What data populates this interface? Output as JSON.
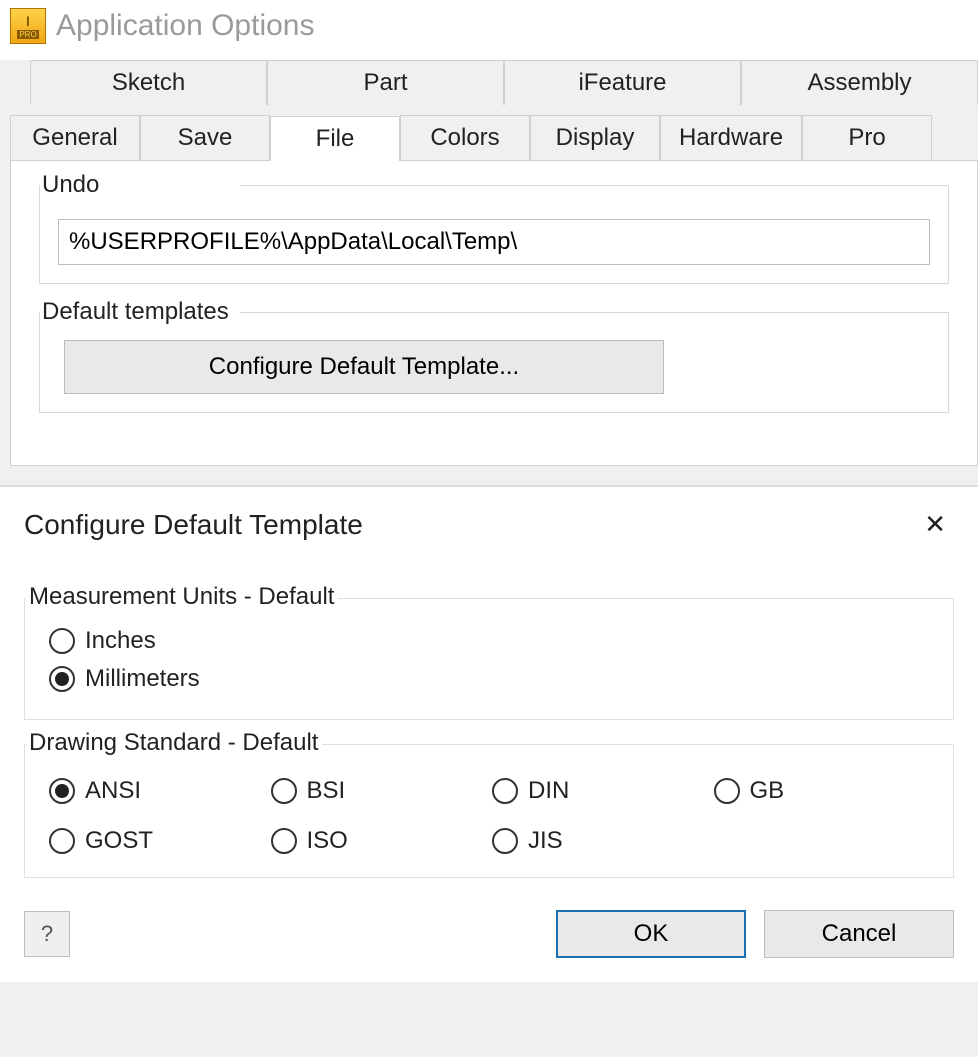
{
  "window": {
    "title": "Application Options",
    "icon_letter": "I",
    "icon_sub": "PRO"
  },
  "tabs_row1": [
    "Sketch",
    "Part",
    "iFeature",
    "Assembly"
  ],
  "tabs_row2": [
    "General",
    "Save",
    "File",
    "Colors",
    "Display",
    "Hardware",
    "Pro"
  ],
  "active_tab": "File",
  "undo_group": {
    "label": "Undo",
    "path": "%USERPROFILE%\\AppData\\Local\\Temp\\"
  },
  "default_templates_group": {
    "label": "Default templates",
    "button": "Configure Default Template..."
  },
  "modal": {
    "title": "Configure Default Template",
    "units": {
      "legend": "Measurement Units - Default",
      "options": [
        "Inches",
        "Millimeters"
      ],
      "selected": "Millimeters"
    },
    "standard": {
      "legend": "Drawing Standard - Default",
      "options": [
        "ANSI",
        "BSI",
        "DIN",
        "GB",
        "GOST",
        "ISO",
        "JIS"
      ],
      "selected": "ANSI"
    },
    "ok": "OK",
    "cancel": "Cancel"
  }
}
